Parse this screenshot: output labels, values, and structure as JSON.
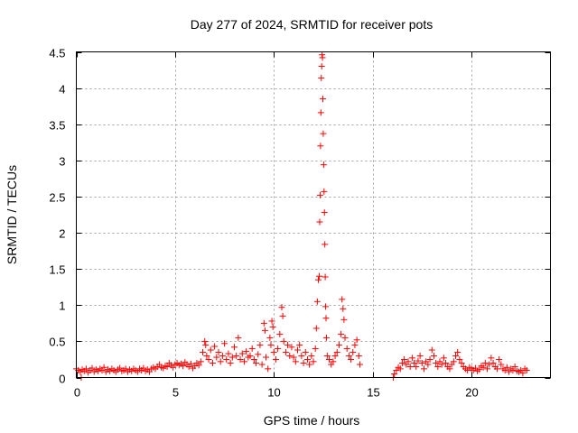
{
  "chart_data": {
    "type": "scatter",
    "title": "Day 277 of 2024, SRMTID for receiver pots",
    "xlabel": "GPS time / hours",
    "ylabel": "SRMTID / TECUs",
    "xlim": [
      0,
      24
    ],
    "ylim": [
      0,
      4.5
    ],
    "grid": true,
    "xticks": [
      0,
      5,
      10,
      15,
      20
    ],
    "xtick_labels": [
      "0",
      "5",
      "10",
      "15",
      "20"
    ],
    "yticks": [
      0,
      0.5,
      1,
      1.5,
      2,
      2.5,
      3,
      3.5,
      4,
      4.5
    ],
    "ytick_labels": [
      "0",
      "0.5",
      "1",
      "1.5",
      "2",
      "2.5",
      "3",
      "3.5",
      "4",
      "4.5"
    ],
    "marker": "+",
    "color": "#ff0000",
    "series": [
      {
        "name": "SRMTID",
        "points": [
          [
            0.0,
            0.12
          ],
          [
            0.1,
            0.1
          ],
          [
            0.2,
            0.08
          ],
          [
            0.3,
            0.11
          ],
          [
            0.4,
            0.09
          ],
          [
            0.5,
            0.12
          ],
          [
            0.6,
            0.07
          ],
          [
            0.7,
            0.1
          ],
          [
            0.8,
            0.13
          ],
          [
            0.9,
            0.08
          ],
          [
            1.0,
            0.11
          ],
          [
            1.1,
            0.09
          ],
          [
            1.2,
            0.12
          ],
          [
            1.3,
            0.1
          ],
          [
            1.4,
            0.14
          ],
          [
            1.5,
            0.08
          ],
          [
            1.6,
            0.11
          ],
          [
            1.7,
            0.09
          ],
          [
            1.8,
            0.12
          ],
          [
            1.9,
            0.1
          ],
          [
            2.0,
            0.08
          ],
          [
            2.1,
            0.11
          ],
          [
            2.2,
            0.13
          ],
          [
            2.3,
            0.09
          ],
          [
            2.4,
            0.1
          ],
          [
            2.5,
            0.12
          ],
          [
            2.6,
            0.08
          ],
          [
            2.7,
            0.11
          ],
          [
            2.8,
            0.09
          ],
          [
            2.9,
            0.12
          ],
          [
            3.0,
            0.1
          ],
          [
            3.1,
            0.08
          ],
          [
            3.2,
            0.12
          ],
          [
            3.3,
            0.1
          ],
          [
            3.4,
            0.13
          ],
          [
            3.5,
            0.09
          ],
          [
            3.6,
            0.11
          ],
          [
            3.7,
            0.08
          ],
          [
            3.8,
            0.12
          ],
          [
            3.9,
            0.14
          ],
          [
            4.0,
            0.12
          ],
          [
            4.1,
            0.15
          ],
          [
            4.2,
            0.18
          ],
          [
            4.3,
            0.14
          ],
          [
            4.4,
            0.13
          ],
          [
            4.5,
            0.16
          ],
          [
            4.6,
            0.15
          ],
          [
            4.7,
            0.2
          ],
          [
            4.8,
            0.17
          ],
          [
            4.9,
            0.14
          ],
          [
            5.0,
            0.18
          ],
          [
            5.1,
            0.2
          ],
          [
            5.2,
            0.17
          ],
          [
            5.3,
            0.19
          ],
          [
            5.4,
            0.16
          ],
          [
            5.5,
            0.21
          ],
          [
            5.6,
            0.18
          ],
          [
            5.7,
            0.15
          ],
          [
            5.8,
            0.19
          ],
          [
            5.9,
            0.13
          ],
          [
            6.0,
            0.16
          ],
          [
            6.1,
            0.2
          ],
          [
            6.2,
            0.17
          ],
          [
            6.3,
            0.22
          ],
          [
            6.4,
            0.35
          ],
          [
            6.5,
            0.5
          ],
          [
            6.55,
            0.45
          ],
          [
            6.6,
            0.3
          ],
          [
            6.7,
            0.25
          ],
          [
            6.8,
            0.38
          ],
          [
            6.9,
            0.2
          ],
          [
            7.0,
            0.43
          ],
          [
            7.1,
            0.28
          ],
          [
            7.2,
            0.35
          ],
          [
            7.3,
            0.22
          ],
          [
            7.4,
            0.3
          ],
          [
            7.5,
            0.47
          ],
          [
            7.6,
            0.25
          ],
          [
            7.7,
            0.33
          ],
          [
            7.8,
            0.2
          ],
          [
            7.9,
            0.28
          ],
          [
            8.0,
            0.42
          ],
          [
            8.1,
            0.3
          ],
          [
            8.2,
            0.55
          ],
          [
            8.3,
            0.25
          ],
          [
            8.4,
            0.33
          ],
          [
            8.5,
            0.22
          ],
          [
            8.6,
            0.36
          ],
          [
            8.7,
            0.28
          ],
          [
            8.8,
            0.3
          ],
          [
            8.9,
            0.4
          ],
          [
            9.0,
            0.25
          ],
          [
            9.1,
            0.2
          ],
          [
            9.2,
            0.32
          ],
          [
            9.3,
            0.45
          ],
          [
            9.4,
            0.18
          ],
          [
            9.5,
            0.75
          ],
          [
            9.55,
            0.65
          ],
          [
            9.6,
            0.28
          ],
          [
            9.7,
            0.12
          ],
          [
            9.8,
            0.55
          ],
          [
            9.85,
            0.45
          ],
          [
            9.9,
            0.78
          ],
          [
            9.95,
            0.7
          ],
          [
            10.0,
            0.35
          ],
          [
            10.1,
            0.25
          ],
          [
            10.2,
            0.4
          ],
          [
            10.3,
            0.6
          ],
          [
            10.4,
            0.97
          ],
          [
            10.45,
            0.85
          ],
          [
            10.5,
            0.5
          ],
          [
            10.6,
            0.35
          ],
          [
            10.7,
            0.45
          ],
          [
            10.8,
            0.3
          ],
          [
            10.9,
            0.42
          ],
          [
            11.0,
            0.28
          ],
          [
            11.1,
            0.22
          ],
          [
            11.2,
            0.38
          ],
          [
            11.3,
            0.45
          ],
          [
            11.4,
            0.3
          ],
          [
            11.5,
            0.2
          ],
          [
            11.6,
            0.35
          ],
          [
            11.7,
            0.25
          ],
          [
            11.8,
            0.18
          ],
          [
            11.9,
            0.3
          ],
          [
            12.0,
            0.22
          ],
          [
            12.1,
            0.4
          ],
          [
            12.15,
            0.68
          ],
          [
            12.2,
            1.05
          ],
          [
            12.25,
            1.35
          ],
          [
            12.3,
            1.4
          ],
          [
            12.32,
            2.15
          ],
          [
            12.34,
            2.52
          ],
          [
            12.36,
            3.2
          ],
          [
            12.38,
            3.66
          ],
          [
            12.4,
            4.14
          ],
          [
            12.42,
            4.3
          ],
          [
            12.44,
            4.46
          ],
          [
            12.46,
            4.42
          ],
          [
            12.48,
            3.85
          ],
          [
            12.5,
            3.37
          ],
          [
            12.52,
            2.94
          ],
          [
            12.54,
            2.57
          ],
          [
            12.56,
            2.28
          ],
          [
            12.58,
            1.84
          ],
          [
            12.6,
            1.39
          ],
          [
            12.62,
            0.98
          ],
          [
            12.64,
            0.82
          ],
          [
            12.66,
            0.55
          ],
          [
            12.7,
            0.3
          ],
          [
            12.8,
            0.25
          ],
          [
            12.9,
            0.18
          ],
          [
            13.0,
            0.22
          ],
          [
            13.1,
            0.3
          ],
          [
            13.2,
            0.35
          ],
          [
            13.3,
            0.45
          ],
          [
            13.4,
            0.6
          ],
          [
            13.45,
            1.08
          ],
          [
            13.5,
            0.95
          ],
          [
            13.55,
            0.8
          ],
          [
            13.6,
            0.55
          ],
          [
            13.7,
            0.4
          ],
          [
            13.8,
            0.3
          ],
          [
            13.9,
            0.25
          ],
          [
            14.0,
            0.35
          ],
          [
            14.1,
            0.45
          ],
          [
            14.2,
            0.52
          ],
          [
            14.3,
            0.3
          ],
          [
            14.35,
            0.18
          ],
          [
            16.05,
            0.0
          ],
          [
            16.1,
            0.05
          ],
          [
            16.2,
            0.1
          ],
          [
            16.3,
            0.14
          ],
          [
            16.4,
            0.12
          ],
          [
            16.5,
            0.2
          ],
          [
            16.6,
            0.25
          ],
          [
            16.7,
            0.18
          ],
          [
            16.8,
            0.22
          ],
          [
            16.9,
            0.15
          ],
          [
            17.0,
            0.27
          ],
          [
            17.1,
            0.2
          ],
          [
            17.2,
            0.15
          ],
          [
            17.3,
            0.23
          ],
          [
            17.4,
            0.3
          ],
          [
            17.5,
            0.2
          ],
          [
            17.6,
            0.12
          ],
          [
            17.7,
            0.22
          ],
          [
            17.8,
            0.18
          ],
          [
            17.9,
            0.25
          ],
          [
            18.0,
            0.38
          ],
          [
            18.1,
            0.3
          ],
          [
            18.2,
            0.2
          ],
          [
            18.3,
            0.15
          ],
          [
            18.4,
            0.22
          ],
          [
            18.5,
            0.18
          ],
          [
            18.6,
            0.27
          ],
          [
            18.7,
            0.2
          ],
          [
            18.8,
            0.15
          ],
          [
            18.9,
            0.12
          ],
          [
            19.0,
            0.18
          ],
          [
            19.1,
            0.22
          ],
          [
            19.2,
            0.3
          ],
          [
            19.3,
            0.35
          ],
          [
            19.4,
            0.25
          ],
          [
            19.5,
            0.2
          ],
          [
            19.6,
            0.15
          ],
          [
            19.7,
            0.12
          ],
          [
            19.8,
            0.1
          ],
          [
            19.9,
            0.14
          ],
          [
            20.0,
            0.12
          ],
          [
            20.1,
            0.1
          ],
          [
            20.2,
            0.13
          ],
          [
            20.3,
            0.09
          ],
          [
            20.4,
            0.11
          ],
          [
            20.5,
            0.16
          ],
          [
            20.6,
            0.14
          ],
          [
            20.7,
            0.2
          ],
          [
            20.8,
            0.12
          ],
          [
            20.9,
            0.18
          ],
          [
            21.0,
            0.27
          ],
          [
            21.1,
            0.2
          ],
          [
            21.2,
            0.15
          ],
          [
            21.3,
            0.12
          ],
          [
            21.4,
            0.25
          ],
          [
            21.5,
            0.18
          ],
          [
            21.6,
            0.12
          ],
          [
            21.7,
            0.1
          ],
          [
            21.8,
            0.14
          ],
          [
            21.9,
            0.08
          ],
          [
            22.0,
            0.12
          ],
          [
            22.1,
            0.1
          ],
          [
            22.2,
            0.15
          ],
          [
            22.3,
            0.09
          ],
          [
            22.4,
            0.08
          ],
          [
            22.5,
            0.1
          ],
          [
            22.6,
            0.06
          ],
          [
            22.7,
            0.12
          ],
          [
            22.8,
            0.1
          ],
          [
            0.25,
            0.0
          ]
        ]
      }
    ]
  }
}
